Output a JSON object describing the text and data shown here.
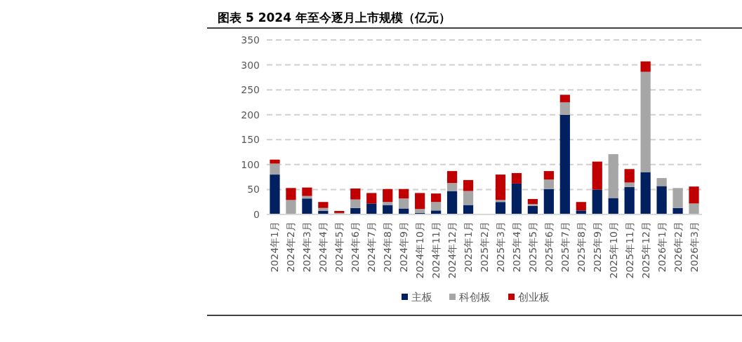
{
  "chart_data": {
    "type": "bar",
    "title": "图表 5 2024 年至今逐月上市规模（亿元）",
    "stacked": true,
    "grid": "y",
    "legend": "bottom",
    "categories": [
      "2024年1月",
      "2024年2月",
      "2024年3月",
      "2024年4月",
      "2024年5月",
      "2024年6月",
      "2024年7月",
      "2024年8月",
      "2024年9月",
      "2024年10月",
      "2024年11月",
      "2024年12月",
      "2025年1月",
      "2025年2月",
      "2025年3月",
      "2025年4月",
      "2025年5月",
      "2025年6月",
      "2025年7月",
      "2025年8月",
      "2025年9月",
      "2025年10月",
      "2025年11月",
      "2025年12月",
      "2026年1月",
      "2026年2月",
      "2026年3月"
    ],
    "series": [
      {
        "name": "主板",
        "color": "#002060",
        "values": [
          80,
          0,
          32,
          7,
          0,
          13,
          22,
          19,
          12,
          3,
          8,
          47,
          19,
          0,
          25,
          62,
          17,
          51,
          200,
          8,
          50,
          33,
          55,
          85,
          57,
          13,
          0
        ]
      },
      {
        "name": "科创板",
        "color": "#a6a6a6",
        "values": [
          22,
          29,
          5,
          6,
          3,
          17,
          0,
          6,
          20,
          8,
          17,
          16,
          28,
          0,
          4,
          0,
          4,
          19,
          25,
          0,
          0,
          88,
          9,
          201,
          16,
          40,
          22
        ]
      },
      {
        "name": "创业板",
        "color": "#c00000",
        "values": [
          8,
          24,
          17,
          12,
          4,
          22,
          21,
          26,
          19,
          32,
          17,
          24,
          22,
          0,
          51,
          21,
          10,
          17,
          15,
          17,
          56,
          0,
          27,
          21,
          0,
          0,
          34
        ]
      }
    ],
    "ylim": [
      0,
      350
    ],
    "yticks": [
      0,
      50,
      100,
      150,
      200,
      250,
      300,
      350
    ]
  }
}
